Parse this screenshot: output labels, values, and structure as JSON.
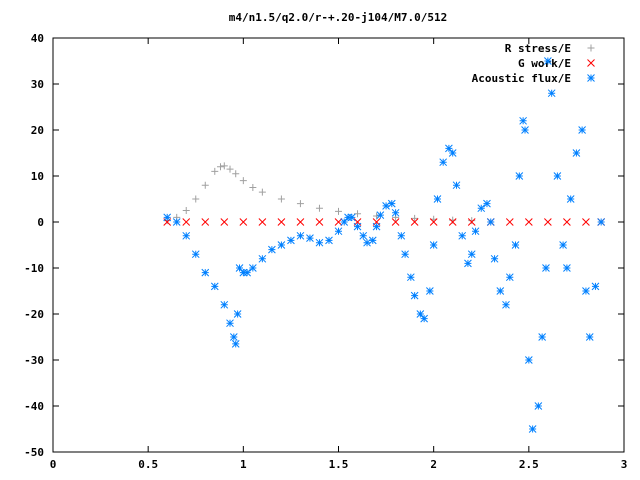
{
  "chart_data": {
    "type": "scatter",
    "title": "m4/n1.5/q2.0/r-+.20-j104/M7.0/512",
    "xlabel": "",
    "ylabel": "",
    "xlim": [
      0,
      3
    ],
    "ylim": [
      -50,
      40
    ],
    "grid": false,
    "legend_position": "top-right",
    "x_ticks": [
      0,
      0.5,
      1,
      1.5,
      2,
      2.5,
      3
    ],
    "x_tick_labels": [
      "0",
      "0.5",
      "1",
      "1.5",
      "2",
      "2.5",
      "3"
    ],
    "y_ticks": [
      -50,
      -40,
      -30,
      -20,
      -10,
      0,
      10,
      20,
      30,
      40
    ],
    "y_tick_labels": [
      "-50",
      "-40",
      "-30",
      "-20",
      "-10",
      "0",
      "10",
      "20",
      "30",
      "40"
    ],
    "series": [
      {
        "name": "R stress/E",
        "marker": "plus",
        "color": "#a0a0a0",
        "x": [
          0.6,
          0.65,
          0.7,
          0.75,
          0.8,
          0.85,
          0.88,
          0.9,
          0.93,
          0.96,
          1.0,
          1.05,
          1.1,
          1.2,
          1.3,
          1.4,
          1.5,
          1.6,
          1.7,
          1.8,
          1.9,
          2.0,
          2.1,
          2.2
        ],
        "y": [
          0.3,
          1.0,
          2.5,
          5.0,
          8.0,
          11.0,
          12.0,
          12.2,
          11.5,
          10.5,
          9.0,
          7.5,
          6.5,
          5.0,
          4.0,
          3.0,
          2.3,
          1.8,
          1.3,
          1.0,
          0.8,
          0.6,
          0.4,
          0.3
        ]
      },
      {
        "name": "G work/E",
        "marker": "cross",
        "color": "#ff0000",
        "x": [
          0.6,
          0.7,
          0.8,
          0.9,
          1.0,
          1.1,
          1.2,
          1.3,
          1.4,
          1.5,
          1.6,
          1.7,
          1.8,
          1.9,
          2.0,
          2.1,
          2.2,
          2.3,
          2.4,
          2.5,
          2.6,
          2.7,
          2.8,
          2.88
        ],
        "y": [
          0,
          0,
          0,
          0,
          0,
          0,
          0,
          0,
          0,
          0,
          0,
          0,
          0,
          0,
          0,
          0,
          0,
          0,
          0,
          0,
          0,
          0,
          0,
          0
        ]
      },
      {
        "name": "Acoustic flux/E",
        "marker": "star",
        "color": "#0080ff",
        "x": [
          0.6,
          0.65,
          0.7,
          0.75,
          0.8,
          0.85,
          0.9,
          0.93,
          0.95,
          0.96,
          0.97,
          0.98,
          1.0,
          1.02,
          1.05,
          1.1,
          1.15,
          1.2,
          1.25,
          1.3,
          1.35,
          1.4,
          1.45,
          1.5,
          1.53,
          1.55,
          1.57,
          1.6,
          1.63,
          1.65,
          1.68,
          1.7,
          1.72,
          1.75,
          1.78,
          1.8,
          1.83,
          1.85,
          1.88,
          1.9,
          1.93,
          1.95,
          1.98,
          2.0,
          2.02,
          2.05,
          2.08,
          2.1,
          2.12,
          2.15,
          2.18,
          2.2,
          2.22,
          2.25,
          2.28,
          2.3,
          2.32,
          2.35,
          2.38,
          2.4,
          2.43,
          2.45,
          2.47,
          2.48,
          2.5,
          2.52,
          2.55,
          2.57,
          2.59,
          2.6,
          2.62,
          2.65,
          2.68,
          2.7,
          2.72,
          2.75,
          2.78,
          2.8,
          2.82,
          2.85,
          2.88
        ],
        "y": [
          1.0,
          0,
          -3,
          -7,
          -11,
          -14,
          -18,
          -22,
          -25,
          -26.5,
          -20,
          -10,
          -11,
          -11,
          -10,
          -8,
          -6,
          -5,
          -4,
          -3,
          -3.5,
          -4.5,
          -4,
          -2,
          0,
          1,
          1,
          -1,
          -3,
          -4.5,
          -4,
          -1,
          1.5,
          3.5,
          4,
          2,
          -3,
          -7,
          -12,
          -16,
          -20,
          -21,
          -15,
          -5,
          5,
          13,
          16,
          15,
          8,
          -3,
          -9,
          -7,
          -2,
          3,
          4,
          0,
          -8,
          -15,
          -18,
          -12,
          -5,
          10,
          22,
          20,
          -30,
          -45,
          -40,
          -25,
          -10,
          35,
          28,
          10,
          -5,
          -10,
          5,
          15,
          20,
          -15,
          -25,
          -14,
          0
        ]
      }
    ]
  }
}
